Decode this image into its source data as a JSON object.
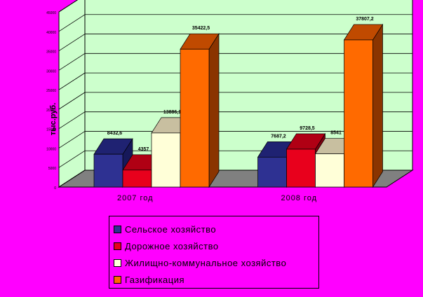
{
  "chart_data": {
    "type": "bar",
    "categories": [
      "2007 год",
      "2008 год"
    ],
    "series": [
      {
        "name": "Сельское хозяйство",
        "values": [
          8432.6,
          7687.2
        ],
        "labels": [
          "8432,6",
          "7687,2"
        ],
        "color": "#2E3192",
        "top_color": "#1F2272",
        "side_color": "#16185A"
      },
      {
        "name": "Дорожное хозяйство",
        "values": [
          4357,
          9728.5
        ],
        "labels": [
          "4357",
          "9728,5"
        ],
        "color": "#E8001C",
        "top_color": "#B00014",
        "side_color": "#80000E"
      },
      {
        "name": "Жилищно-коммунальное хозяйство",
        "values": [
          13886.1,
          8541
        ],
        "labels": [
          "13886,1",
          "8541"
        ],
        "color": "#FFFFD8",
        "top_color": "#C8BFA0",
        "side_color": "#A8A088"
      },
      {
        "name": "Газификация",
        "values": [
          35422.5,
          37807.2
        ],
        "labels": [
          "35422,5",
          "37807,2"
        ],
        "color": "#FF6A00",
        "top_color": "#C04A00",
        "side_color": "#8A3400"
      }
    ],
    "ylabel": "тыс.руб.",
    "ylim": [
      0,
      45000
    ],
    "grid": true,
    "legend_position": "bottom"
  },
  "colors": {
    "background": "#FF00FF",
    "wall": "#CCFFCC",
    "floor": "#808080",
    "grid": "#000000"
  }
}
